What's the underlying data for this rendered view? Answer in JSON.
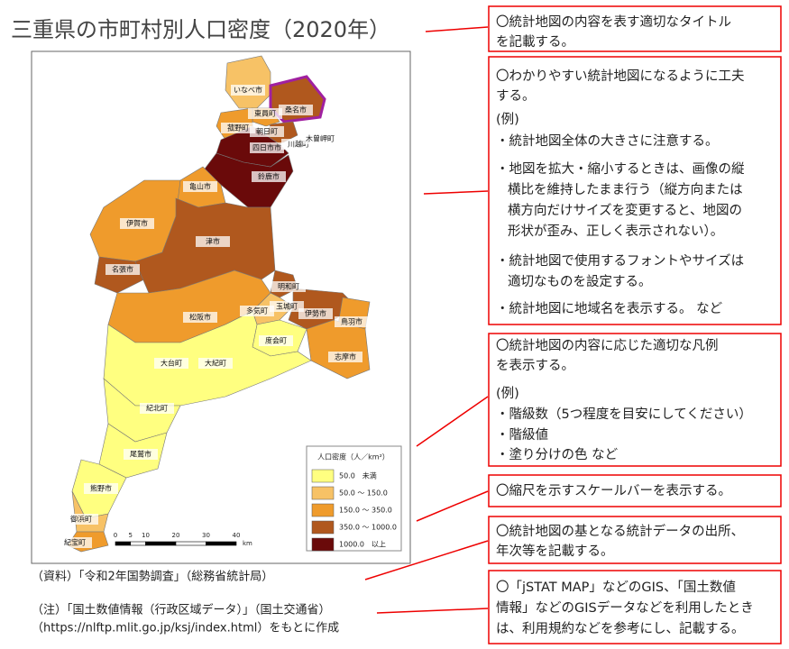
{
  "header": {
    "title": "三重県の市町村別人口密度（2020年）"
  },
  "map": {
    "labels": [
      "いなべ市",
      "桑名市",
      "東員町",
      "菰野町",
      "朝日町",
      "川越町",
      "木曽岬町",
      "四日市市",
      "鈴鹿市",
      "亀山市",
      "伊賀市",
      "津市",
      "名張市",
      "明和町",
      "玉城町",
      "松阪市",
      "多気町",
      "伊勢市",
      "鳥羽市",
      "度会町",
      "志摩市",
      "大台町",
      "大紀町",
      "紀北町",
      "尾鷲市",
      "熊野市",
      "御浜町",
      "紀宝町"
    ],
    "legend": {
      "title": "人口密度（人／km²）",
      "items": [
        {
          "label": "50.0　未満",
          "color": "#ffff80"
        },
        {
          "label": "50.0 〜 150.0",
          "color": "#f7c266"
        },
        {
          "label": "150.0 〜 350.0",
          "color": "#ef9b2c"
        },
        {
          "label": "350.0 〜 1000.0",
          "color": "#b0581e"
        },
        {
          "label": "1000.0　以上",
          "color": "#6a0a0a"
        }
      ]
    },
    "scale_bar": {
      "ticks": [
        0,
        5,
        10,
        20,
        30,
        40
      ],
      "unit": "km"
    }
  },
  "notes": [
    "（資料）「令和2年国勢調査」（総務省統計局）",
    "（注）「国土数値情報（行政区域データ）」（国土交通省）",
    "（https://nlftp.mlit.go.jp/ksj/index.html）をもとに作成"
  ],
  "annotations": [
    {
      "lines": [
        "〇統計地図の内容を表す適切なタイトル",
        "を記載する。"
      ]
    },
    {
      "lines": [
        "〇わかりやすい統計地図になるように工夫",
        "する。",
        "(例)",
        "・統計地図全体の大きさに注意する。",
        "・地図を拡大・縮小するときは、画像の縦",
        "横比を維持したまま行う（縦方向または",
        "横方向だけサイズを変更すると、地図の",
        "形状が歪み、正しく表示されない）。",
        "・統計地図で使用するフォントやサイズは",
        "適切なものを設定する。",
        "・統計地図に地域名を表示する。 など"
      ]
    },
    {
      "lines": [
        "〇統計地図の内容に応じた適切な凡例",
        "を表示する。",
        "(例)",
        "・階級数（5つ程度を目安にしてください）",
        "・階級値",
        "・塗り分けの色 など"
      ]
    },
    {
      "lines": [
        "〇縮尺を示すスケールバーを表示する。"
      ]
    },
    {
      "lines": [
        "〇統計地図の基となる統計データの出所、",
        "年次等を記載する。"
      ]
    },
    {
      "lines": [
        "〇「jSTAT MAP」などのGIS、「国土数値",
        "情報」などのGISデータなどを利用したとき",
        "は、利用規約などを参考にし、記載する。"
      ]
    }
  ]
}
